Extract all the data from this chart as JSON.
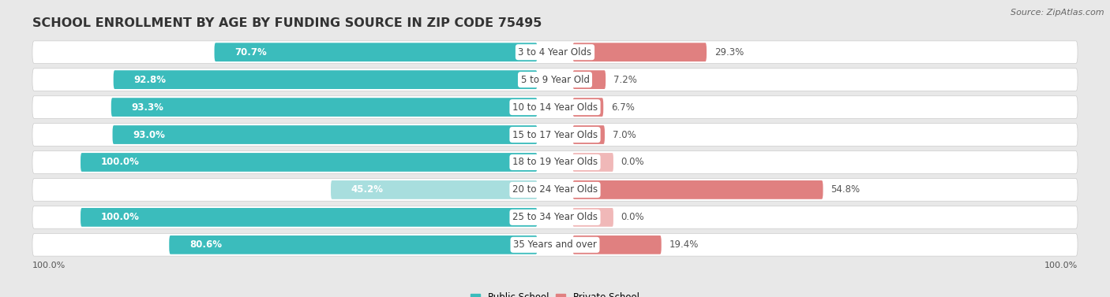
{
  "title": "SCHOOL ENROLLMENT BY AGE BY FUNDING SOURCE IN ZIP CODE 75495",
  "source": "Source: ZipAtlas.com",
  "categories": [
    "3 to 4 Year Olds",
    "5 to 9 Year Old",
    "10 to 14 Year Olds",
    "15 to 17 Year Olds",
    "18 to 19 Year Olds",
    "20 to 24 Year Olds",
    "25 to 34 Year Olds",
    "35 Years and over"
  ],
  "public_pct": [
    70.7,
    92.8,
    93.3,
    93.0,
    100.0,
    45.2,
    100.0,
    80.6
  ],
  "private_pct": [
    29.3,
    7.2,
    6.7,
    7.0,
    0.0,
    54.8,
    0.0,
    19.4
  ],
  "public_color_normal": "#3bbcbc",
  "public_color_light": "#a8dede",
  "private_color_normal": "#e08080",
  "private_color_light": "#f0b8b8",
  "row_bg": "#ffffff",
  "chart_bg": "#e8e8e8",
  "title_color": "#333333",
  "source_color": "#666666",
  "label_color": "#444444",
  "bar_label_color": "#ffffff",
  "pct_label_color": "#555555",
  "title_fontsize": 11.5,
  "cat_fontsize": 8.5,
  "pct_fontsize": 8.5,
  "source_fontsize": 8,
  "legend_fontsize": 8.5,
  "x_left_label": "100.0%",
  "x_right_label": "100.0%",
  "x_tick_fontsize": 8
}
